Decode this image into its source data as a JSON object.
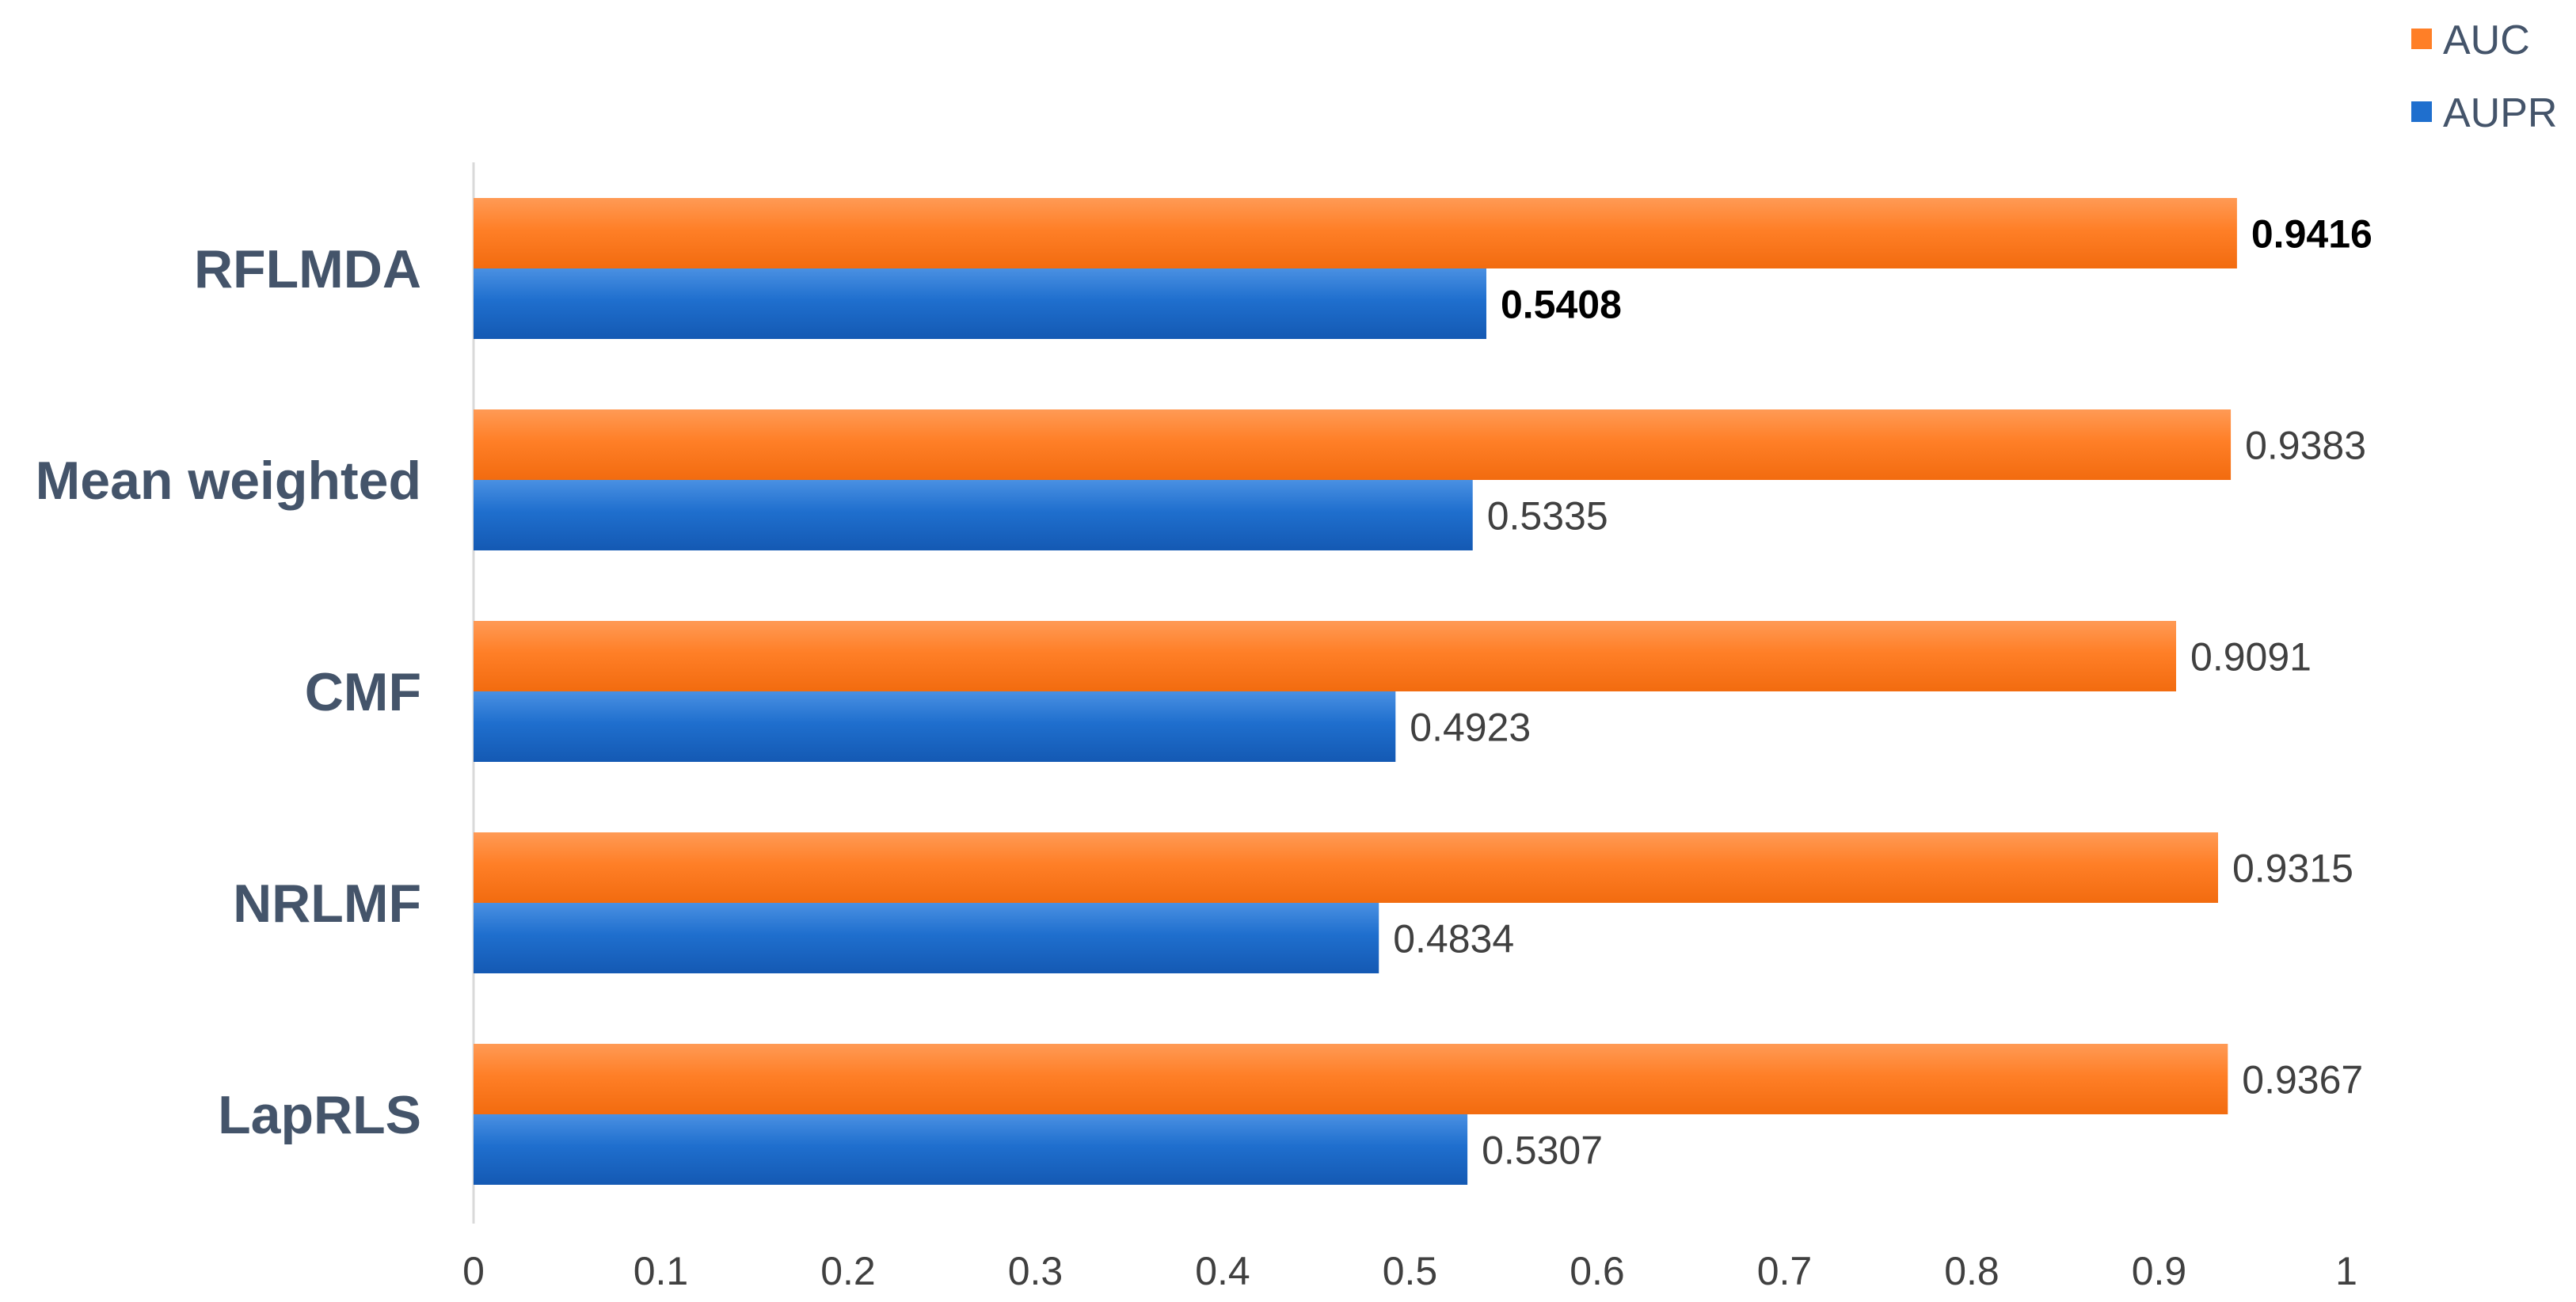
{
  "chart_data": {
    "type": "bar",
    "orientation": "horizontal",
    "title": "",
    "xlabel": "",
    "ylabel": "",
    "xlim": [
      0,
      1
    ],
    "x_ticks": [
      0,
      0.1,
      0.2,
      0.3,
      0.4,
      0.5,
      0.6,
      0.7,
      0.8,
      0.9,
      1
    ],
    "x_tick_labels": [
      "0",
      "0.1",
      "0.2",
      "0.3",
      "0.4",
      "0.5",
      "0.6",
      "0.7",
      "0.8",
      "0.9",
      "1"
    ],
    "grid": false,
    "legend_position": "top-right",
    "categories": [
      "RFLMDA",
      "Mean weighted",
      "CMF",
      "NRLMF",
      "LapRLS"
    ],
    "series": [
      {
        "name": "AUC",
        "color": "#ff7f27",
        "values": [
          0.9416,
          0.9383,
          0.9091,
          0.9315,
          0.9367
        ],
        "labels": [
          "0.9416",
          "0.9383",
          "0.9091",
          "0.9315",
          "0.9367"
        ]
      },
      {
        "name": "AUPR",
        "color": "#1f6fce",
        "values": [
          0.5408,
          0.5335,
          0.4923,
          0.4834,
          0.5307
        ],
        "labels": [
          "0.5408",
          "0.5335",
          "0.4923",
          "0.4834",
          "0.5307"
        ]
      }
    ],
    "bold_category": "RFLMDA"
  }
}
